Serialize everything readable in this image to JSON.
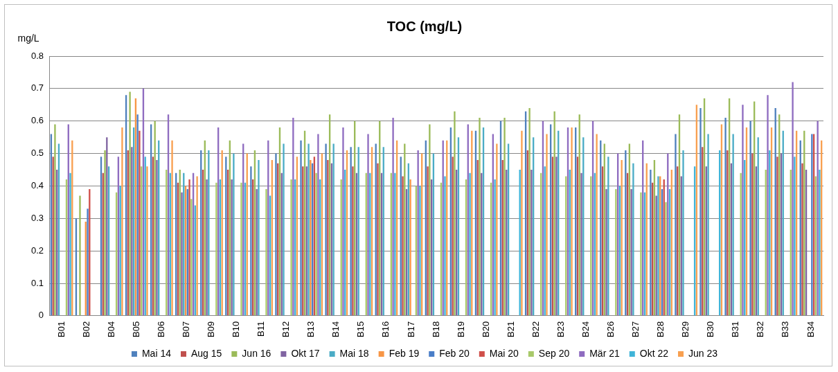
{
  "chart_data": {
    "type": "bar",
    "title": "TOC (mg/L)",
    "ylabel": "mg/L",
    "categories": [
      "B01",
      "B02",
      "B04",
      "B05",
      "B06",
      "B07",
      "B09",
      "B10",
      "B11",
      "B12",
      "B13",
      "B14",
      "B15",
      "B16",
      "B17",
      "B18",
      "B19",
      "B20",
      "B21",
      "B22",
      "B23",
      "B24",
      "B26",
      "B27",
      "B28",
      "B29",
      "B30",
      "B31",
      "B32",
      "B33",
      "B34"
    ],
    "series": [
      {
        "name": "Mai 14",
        "color": "#4f81bd",
        "values": [
          0.56,
          0.3,
          0.49,
          0.68,
          0.59,
          0.44,
          0.51,
          0.49,
          0.46,
          0.5,
          0.54,
          0.53,
          0.52,
          0.53,
          0.49,
          0.54,
          0.58,
          0.57,
          0.6,
          0.63,
          0.59,
          0.58,
          0.54,
          0.51,
          0.45,
          0.56,
          0.64,
          0.61,
          0.6,
          0.64,
          0.54
        ]
      },
      {
        "name": "Aug 15",
        "color": "#c0504d",
        "values": [
          0.49,
          null,
          0.44,
          0.51,
          0.49,
          0.41,
          0.45,
          0.45,
          0.42,
          0.47,
          0.46,
          0.48,
          0.46,
          0.47,
          0.43,
          0.46,
          0.49,
          0.48,
          0.48,
          0.51,
          0.49,
          0.49,
          0.46,
          0.44,
          0.41,
          0.46,
          0.52,
          0.51,
          0.5,
          0.49,
          0.47
        ]
      },
      {
        "name": "Jun 16",
        "color": "#9bbb59",
        "values": [
          0.59,
          0.37,
          0.51,
          0.69,
          0.6,
          0.45,
          0.54,
          0.54,
          0.51,
          0.58,
          0.57,
          0.62,
          0.6,
          0.6,
          0.53,
          0.59,
          0.63,
          0.61,
          0.61,
          0.64,
          0.63,
          0.62,
          0.53,
          0.53,
          0.48,
          0.62,
          0.67,
          0.67,
          0.66,
          0.62,
          0.57
        ]
      },
      {
        "name": "Okt 17",
        "color": "#8064a2",
        "values": [
          0.45,
          null,
          0.55,
          0.52,
          0.48,
          0.38,
          0.42,
          0.42,
          0.39,
          0.44,
          0.46,
          0.47,
          0.44,
          0.44,
          0.39,
          0.42,
          0.45,
          0.44,
          0.45,
          0.45,
          0.49,
          0.44,
          0.39,
          0.39,
          0.37,
          0.43,
          0.46,
          0.47,
          0.46,
          0.5,
          0.45
        ]
      },
      {
        "name": "Mai 18",
        "color": "#4bacc6",
        "values": [
          0.53,
          null,
          0.46,
          0.58,
          0.54,
          0.44,
          0.51,
          0.5,
          0.48,
          0.53,
          0.53,
          0.53,
          0.52,
          0.52,
          0.47,
          0.5,
          0.55,
          0.58,
          0.53,
          0.55,
          0.57,
          0.55,
          0.49,
          0.47,
          0.43,
          0.51,
          0.56,
          0.56,
          0.55,
          0.57,
          null
        ]
      },
      {
        "name": "Feb 19",
        "color": "#f79646",
        "values": [
          null,
          0.29,
          null,
          0.67,
          null,
          0.4,
          null,
          null,
          null,
          null,
          0.48,
          null,
          null,
          null,
          0.42,
          null,
          null,
          null,
          null,
          null,
          null,
          null,
          null,
          null,
          0.43,
          null,
          null,
          null,
          null,
          null,
          null
        ]
      },
      {
        "name": "Feb 20",
        "color": "#4a7ec8",
        "values": [
          null,
          0.33,
          null,
          0.62,
          null,
          0.39,
          null,
          null,
          null,
          null,
          0.47,
          null,
          null,
          null,
          null,
          null,
          null,
          null,
          null,
          null,
          null,
          null,
          null,
          null,
          0.39,
          null,
          null,
          null,
          null,
          null,
          0.56
        ]
      },
      {
        "name": "Mai 20",
        "color": "#d0504a",
        "values": [
          null,
          0.39,
          null,
          0.57,
          null,
          0.42,
          null,
          null,
          null,
          null,
          0.49,
          null,
          null,
          null,
          null,
          null,
          null,
          null,
          null,
          null,
          null,
          null,
          null,
          null,
          0.42,
          null,
          null,
          null,
          null,
          null,
          0.56
        ]
      },
      {
        "name": "Sep 20",
        "color": "#a8c96a",
        "values": [
          0.42,
          null,
          0.38,
          0.46,
          0.45,
          0.36,
          0.41,
          0.41,
          0.39,
          0.42,
          0.44,
          0.42,
          0.44,
          0.44,
          0.4,
          0.41,
          0.42,
          0.41,
          null,
          0.44,
          0.43,
          0.43,
          0.39,
          0.38,
          0.35,
          null,
          null,
          0.44,
          0.45,
          0.45,
          0.43
        ]
      },
      {
        "name": "Mär 21",
        "color": "#8f6cc0",
        "values": [
          0.59,
          null,
          0.49,
          0.7,
          0.62,
          0.44,
          0.58,
          0.53,
          0.54,
          0.61,
          0.56,
          0.58,
          0.56,
          0.61,
          0.51,
          0.54,
          0.59,
          0.56,
          null,
          0.6,
          0.58,
          0.6,
          0.5,
          0.54,
          0.5,
          null,
          null,
          0.65,
          0.68,
          0.72,
          0.6
        ]
      },
      {
        "name": "Okt 22",
        "color": "#40b4d8",
        "values": [
          0.44,
          null,
          0.4,
          0.49,
          0.44,
          0.34,
          0.42,
          0.41,
          0.37,
          0.42,
          0.42,
          0.45,
          0.44,
          0.44,
          0.4,
          0.43,
          0.44,
          0.42,
          0.45,
          0.46,
          0.45,
          0.44,
          0.4,
          0.38,
          0.39,
          0.46,
          0.51,
          0.48,
          0.51,
          0.49,
          0.45
        ]
      },
      {
        "name": "Jun 23",
        "color": "#f8a050",
        "values": [
          0.54,
          null,
          0.58,
          0.46,
          0.54,
          0.43,
          0.51,
          0.5,
          0.48,
          0.49,
          0.5,
          0.51,
          0.52,
          0.54,
          0.5,
          0.54,
          0.57,
          0.53,
          0.57,
          0.56,
          0.58,
          0.56,
          0.48,
          0.47,
          0.45,
          0.65,
          0.59,
          0.58,
          0.58,
          0.57,
          0.54
        ]
      }
    ],
    "ylim": [
      0,
      0.8
    ],
    "yticks": [
      0,
      0.1,
      0.2,
      0.3,
      0.4,
      0.5,
      0.6,
      0.7,
      0.8
    ],
    "grid": "y",
    "legend": "bottom"
  }
}
